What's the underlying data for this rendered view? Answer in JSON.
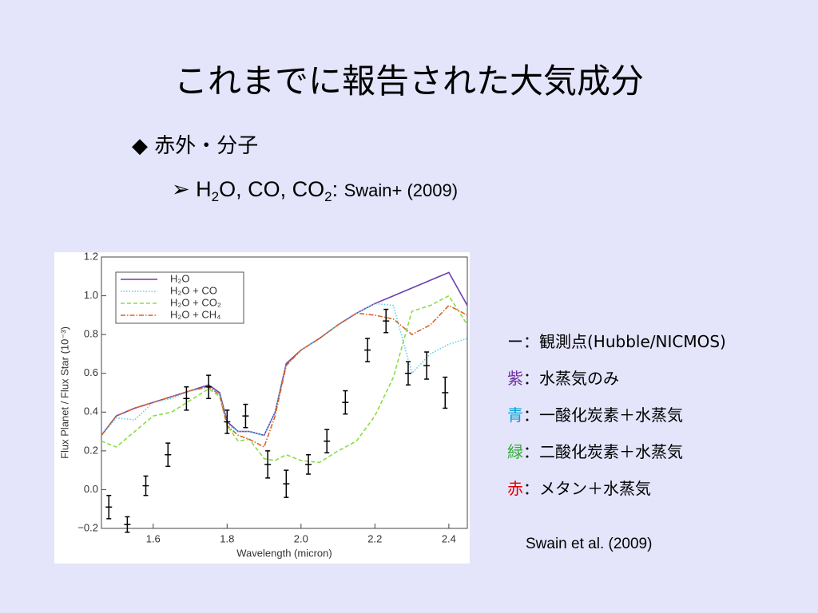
{
  "title": "これまでに報告された大気成分",
  "bullet": "赤外・分子",
  "sub_bullet": {
    "parts": [
      "H",
      "2",
      "O, CO, CO",
      "2",
      ": "
    ],
    "cite": "Swain+ (2009)"
  },
  "notes": [
    {
      "key": "ー",
      "color": "#000000",
      "text": "：観測点(Hubble/NICMOS)"
    },
    {
      "key": "紫",
      "color": "#7030a0",
      "text": "：水蒸気のみ"
    },
    {
      "key": "青",
      "color": "#00a0d8",
      "text": "：一酸化炭素＋水蒸気"
    },
    {
      "key": "緑",
      "color": "#33b033",
      "text": "：二酸化炭素＋水蒸気"
    },
    {
      "key": "赤",
      "color": "#e00000",
      "text": "：メタン＋水蒸気"
    }
  ],
  "citation": "Swain et al. (2009)",
  "chart_data": {
    "type": "line",
    "x_label": "Wavelength (micron)",
    "y_label": "Flux Planet / Flux Star (10⁻³)",
    "xlim": [
      1.46,
      2.45
    ],
    "ylim": [
      -0.2,
      1.2
    ],
    "xticks": [
      1.6,
      1.8,
      {
        "value": 2,
        "label": "2.0"
      },
      2.2,
      2.4
    ],
    "yticks": [
      {
        "value": -0.2,
        "label": "−0.2"
      },
      {
        "value": 0,
        "label": "0.0"
      },
      0.2,
      0.4,
      0.6,
      0.8,
      {
        "value": 1,
        "label": "1.0"
      },
      1.2
    ],
    "legend": "top-left",
    "x": [
      1.46,
      1.5,
      1.55,
      1.6,
      1.65,
      1.7,
      1.75,
      1.78,
      1.8,
      1.83,
      1.86,
      1.9,
      1.93,
      1.96,
      2.0,
      2.05,
      2.1,
      2.15,
      2.2,
      2.25,
      2.3,
      2.35,
      2.4,
      2.45
    ],
    "series": [
      {
        "name": "H₂O",
        "color": "#6a3fb0",
        "dash": "solid",
        "values": [
          0.28,
          0.38,
          0.42,
          0.45,
          0.48,
          0.51,
          0.54,
          0.5,
          0.35,
          0.3,
          0.3,
          0.28,
          0.4,
          0.65,
          0.72,
          0.78,
          0.85,
          0.91,
          0.96,
          1.0,
          1.04,
          1.08,
          1.12,
          0.95
        ]
      },
      {
        "name": "H₂O + CO",
        "color": "#5cd0e8",
        "dash": "dotted",
        "values": [
          0.28,
          0.37,
          0.36,
          0.45,
          0.47,
          0.51,
          0.53,
          0.49,
          0.34,
          0.3,
          0.3,
          0.28,
          0.4,
          0.64,
          0.72,
          0.78,
          0.85,
          0.91,
          0.96,
          0.95,
          0.6,
          0.7,
          0.75,
          0.78
        ]
      },
      {
        "name": "H₂O + CO₂",
        "color": "#88dd44",
        "dash": "dashed",
        "values": [
          0.25,
          0.22,
          0.3,
          0.38,
          0.4,
          0.46,
          0.52,
          0.48,
          0.33,
          0.25,
          0.26,
          0.16,
          0.15,
          0.18,
          0.15,
          0.14,
          0.2,
          0.25,
          0.38,
          0.58,
          0.92,
          0.95,
          1.0,
          0.85
        ]
      },
      {
        "name": "H₂O + CH₄",
        "color": "#d8642a",
        "dash": "dashdot",
        "values": [
          0.28,
          0.38,
          0.42,
          0.45,
          0.48,
          0.51,
          0.53,
          0.49,
          0.33,
          0.28,
          0.26,
          0.22,
          0.38,
          0.64,
          0.72,
          0.78,
          0.85,
          0.91,
          0.9,
          0.88,
          0.8,
          0.85,
          0.95,
          0.9
        ]
      }
    ],
    "points": {
      "x": [
        1.48,
        1.53,
        1.58,
        1.64,
        1.69,
        1.75,
        1.8,
        1.85,
        1.91,
        1.96,
        2.02,
        2.07,
        2.12,
        2.18,
        2.23,
        2.29,
        2.34,
        2.39
      ],
      "values": [
        -0.09,
        -0.18,
        0.02,
        0.18,
        0.47,
        0.53,
        0.35,
        0.38,
        0.13,
        0.03,
        0.13,
        0.25,
        0.45,
        0.72,
        0.87,
        0.6,
        0.64,
        0.5
      ],
      "errors": [
        0.06,
        0.04,
        0.05,
        0.06,
        0.06,
        0.06,
        0.06,
        0.06,
        0.07,
        0.07,
        0.05,
        0.06,
        0.06,
        0.06,
        0.06,
        0.06,
        0.07,
        0.08
      ]
    }
  }
}
